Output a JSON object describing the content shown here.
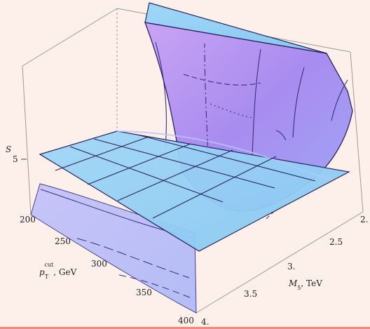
{
  "chart_data": {
    "type": "surface3d",
    "title": "",
    "zlabel": "S",
    "x_axis": {
      "label": "p_T^cut, GeV",
      "label_main": "p",
      "label_sub": "T",
      "label_sup": "cut",
      "label_unit": ", GeV",
      "ticks": [
        "200",
        "250",
        "300",
        "350",
        "400"
      ],
      "range": [
        200,
        400
      ]
    },
    "y_axis": {
      "label": "M_5, TeV",
      "label_main": "M",
      "label_sub": "5",
      "label_unit": ", TeV",
      "ticks": [
        "2.",
        "2.5",
        "3.",
        "3.5",
        "4."
      ],
      "range": [
        2,
        4
      ]
    },
    "z_axis": {
      "label": "S",
      "ticks": [
        "5"
      ]
    },
    "surfaces": [
      {
        "name": "",
        "kind": "curved",
        "color": "#a98cf0",
        "description_values": {
          "x": [
            200,
            250,
            300,
            350,
            400
          ],
          "y": [
            2.0,
            2.5,
            3.0,
            3.5,
            4.0
          ]
        }
      },
      {
        "name": "",
        "kind": "plane",
        "z": 5,
        "color": "#8fd0f6"
      }
    ]
  }
}
